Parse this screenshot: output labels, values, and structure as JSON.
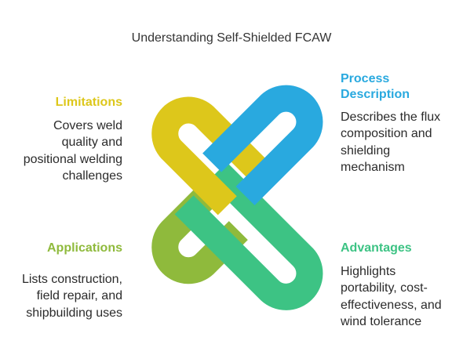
{
  "title": "Understanding Self-Shielded FCAW",
  "colors": {
    "limitations": "#DDC71B",
    "process": "#29A9DF",
    "applications": "#8FBA3C",
    "advantages": "#3DC384"
  },
  "sections": {
    "limitations": {
      "heading": "Limitations",
      "description": "Covers weld\nquality and\npositional welding\nchallenges"
    },
    "process": {
      "heading": "Process\nDescription",
      "description": "Describes the flux\ncomposition and\nshielding\nmechanism"
    },
    "applications": {
      "heading": "Applications",
      "description": "Lists construction,\nfield repair, and\nshipbuilding uses"
    },
    "advantages": {
      "heading": "Advantages",
      "description": "Highlights\nportability, cost-\neffectiveness, and\nwind tolerance"
    }
  }
}
